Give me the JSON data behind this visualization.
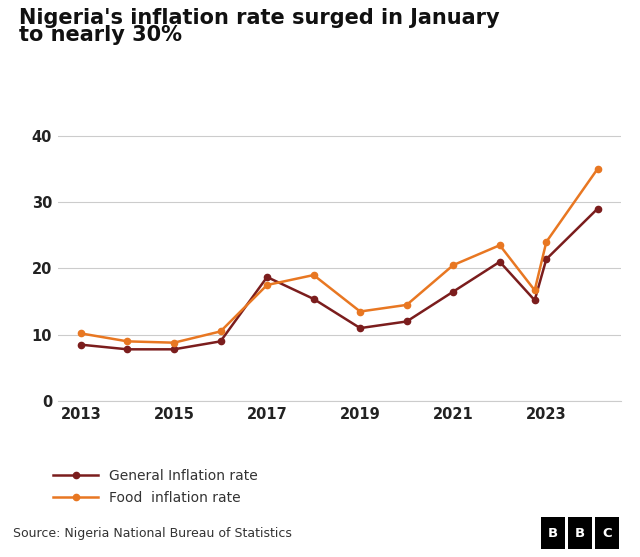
{
  "title_line1": "Nigeria's inflation rate surged in January",
  "title_line2": "to nearly 30%",
  "title_fontsize": 15,
  "source_text": "Source: Nigeria National Bureau of Statistics",
  "general_inflation": {
    "label": "General Inflation rate",
    "color": "#7B1D1D",
    "years": [
      2013,
      2014,
      2015,
      2016,
      2017,
      2018,
      2019,
      2020,
      2021,
      2022,
      2022.75,
      2023,
      2024.1
    ],
    "values": [
      8.5,
      7.8,
      7.8,
      9.0,
      18.7,
      15.4,
      11.0,
      12.0,
      16.5,
      21.0,
      15.2,
      21.4,
      29.0
    ]
  },
  "food_inflation": {
    "label": "Food  inflation rate",
    "color": "#E87722",
    "years": [
      2013,
      2014,
      2015,
      2016,
      2017,
      2018,
      2019,
      2020,
      2021,
      2022,
      2022.75,
      2023,
      2024.1
    ],
    "values": [
      10.2,
      9.0,
      8.8,
      10.5,
      17.5,
      19.0,
      13.5,
      14.5,
      20.5,
      23.5,
      16.7,
      24.0,
      35.0
    ]
  },
  "ylim": [
    0,
    42
  ],
  "yticks": [
    0,
    10,
    20,
    30,
    40
  ],
  "xticks": [
    2013,
    2015,
    2017,
    2019,
    2021,
    2023
  ],
  "xlim": [
    2012.5,
    2024.6
  ],
  "background_color": "#ffffff",
  "grid_color": "#cccccc",
  "footer_bg": "#e8e8e8"
}
